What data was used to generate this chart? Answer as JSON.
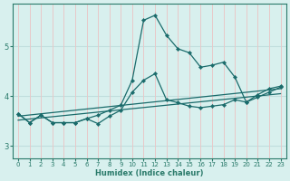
{
  "xlabel": "Humidex (Indice chaleur)",
  "background_color": "#d8f0ee",
  "vgrid_color": "#e8c8c8",
  "hgrid_color": "#c0dedd",
  "line_color": "#1a6b6b",
  "spine_color": "#2a7a6a",
  "xlim": [
    -0.5,
    23.5
  ],
  "ylim": [
    2.75,
    5.85
  ],
  "yticks": [
    3,
    4,
    5
  ],
  "xticks": [
    0,
    1,
    2,
    3,
    4,
    5,
    6,
    7,
    8,
    9,
    10,
    11,
    12,
    13,
    14,
    15,
    16,
    17,
    18,
    19,
    20,
    21,
    22,
    23
  ],
  "lines": [
    {
      "x": [
        0,
        1,
        2,
        3,
        4,
        5,
        6,
        7,
        8,
        9,
        10,
        11,
        12,
        13,
        14,
        15,
        16,
        17,
        18,
        19,
        20,
        21,
        22,
        23
      ],
      "y": [
        3.65,
        3.47,
        3.62,
        3.47,
        3.47,
        3.47,
        3.55,
        3.62,
        3.72,
        3.82,
        4.32,
        5.52,
        5.62,
        5.22,
        4.95,
        4.87,
        4.58,
        4.62,
        4.68,
        4.38,
        3.88,
        4.03,
        4.15,
        4.2
      ],
      "has_markers": true
    },
    {
      "x": [
        0,
        1,
        2,
        3,
        4,
        5,
        6,
        7,
        8,
        9,
        10,
        11,
        12,
        13,
        14,
        15,
        16,
        17,
        18,
        19,
        20,
        21,
        22,
        23
      ],
      "y": [
        3.65,
        3.47,
        3.62,
        3.47,
        3.47,
        3.47,
        3.55,
        3.45,
        3.6,
        3.72,
        4.08,
        4.32,
        4.45,
        3.93,
        3.87,
        3.8,
        3.77,
        3.8,
        3.83,
        3.93,
        3.88,
        3.98,
        4.08,
        4.18
      ],
      "has_markers": true
    },
    {
      "x": [
        0,
        23
      ],
      "y": [
        3.6,
        4.15
      ],
      "has_markers": false
    },
    {
      "x": [
        0,
        23
      ],
      "y": [
        3.52,
        4.05
      ],
      "has_markers": false
    }
  ]
}
